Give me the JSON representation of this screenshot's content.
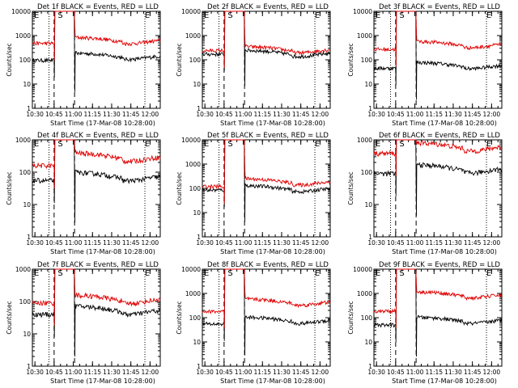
{
  "colors": {
    "events": "#000000",
    "lld": "#e00000",
    "axes": "#000000",
    "background": "#ffffff"
  },
  "chart_data": [
    {
      "type": "line",
      "title": "Det 1f BLACK = Events, RED = LLD",
      "xlabel": "Start Time (17-Mar-08 10:28:00)",
      "ylabel": "Counts/sec",
      "yscale": "log",
      "ylim": [
        1,
        10000
      ],
      "x_tick_labels": [
        "10:30",
        "10:45",
        "11:00",
        "11:15",
        "11:30",
        "11:45",
        "12:00"
      ],
      "y_tick_labels": [
        "1",
        "10",
        "100",
        "1000",
        "10000"
      ],
      "markers": [
        "E",
        "S",
        "E"
      ],
      "series": [
        {
          "name": "Events",
          "color": "black",
          "level": 95,
          "post_level": 145
        },
        {
          "name": "LLD",
          "color": "red",
          "level": 480,
          "post_level": 640
        }
      ]
    },
    {
      "type": "line",
      "title": "Det 2f BLACK = Events, RED = LLD",
      "xlabel": "Start Time (17-Mar-08 10:28:00)",
      "ylabel": "Counts/sec",
      "yscale": "log",
      "ylim": [
        1,
        10000
      ],
      "x_tick_labels": [
        "10:30",
        "10:45",
        "11:00",
        "11:15",
        "11:30",
        "11:45",
        "12:00"
      ],
      "y_tick_labels": [
        "1",
        "10",
        "100",
        "1000",
        "10000"
      ],
      "markers": [
        "E",
        "S",
        "E"
      ],
      "series": [
        {
          "name": "Events",
          "color": "black",
          "level": 170,
          "post_level": 190
        },
        {
          "name": "LLD",
          "color": "red",
          "level": 240,
          "post_level": 270
        }
      ]
    },
    {
      "type": "line",
      "title": "Det 3f BLACK = Events, RED = LLD",
      "xlabel": "Start Time (17-Mar-08 10:28:00)",
      "ylabel": "Counts/sec",
      "yscale": "log",
      "ylim": [
        1,
        10000
      ],
      "x_tick_labels": [
        "10:30",
        "10:45",
        "11:00",
        "11:15",
        "11:30",
        "11:45",
        "12:00"
      ],
      "y_tick_labels": [
        "1",
        "10",
        "100",
        "1000",
        "10000"
      ],
      "markers": [
        "E",
        "S",
        "E"
      ],
      "series": [
        {
          "name": "Events",
          "color": "black",
          "level": 45,
          "post_level": 60
        },
        {
          "name": "LLD",
          "color": "red",
          "level": 270,
          "post_level": 440
        }
      ]
    },
    {
      "type": "line",
      "title": "Det 4f BLACK = Events, RED = LLD",
      "xlabel": "Start Time (17-Mar-08 10:28:00)",
      "ylabel": "Counts/sec",
      "yscale": "log",
      "ylim": [
        1,
        1000
      ],
      "x_tick_labels": [
        "10:30",
        "10:45",
        "11:00",
        "11:15",
        "11:30",
        "11:45",
        "12:00"
      ],
      "y_tick_labels": [
        "1",
        "10",
        "100",
        "1000"
      ],
      "markers": [
        "E",
        "S",
        "E"
      ],
      "series": [
        {
          "name": "Events",
          "color": "black",
          "level": 55,
          "post_level": 75
        },
        {
          "name": "LLD",
          "color": "red",
          "level": 160,
          "post_level": 300
        }
      ]
    },
    {
      "type": "line",
      "title": "Det 5f BLACK = Events, RED = LLD",
      "xlabel": "Start Time (17-Mar-08 10:28:00)",
      "ylabel": "Counts/sec",
      "yscale": "log",
      "ylim": [
        1,
        10000
      ],
      "x_tick_labels": [
        "10:30",
        "10:45",
        "11:00",
        "11:15",
        "11:30",
        "11:45",
        "12:00"
      ],
      "y_tick_labels": [
        "1",
        "10",
        "100",
        "1000",
        "10000"
      ],
      "markers": [
        "E",
        "S",
        "E"
      ],
      "series": [
        {
          "name": "Events",
          "color": "black",
          "level": 85,
          "post_level": 100
        },
        {
          "name": "LLD",
          "color": "red",
          "level": 120,
          "post_level": 190
        }
      ]
    },
    {
      "type": "line",
      "title": "Det 6f BLACK = Events, RED = LLD",
      "xlabel": "Start Time (17-Mar-08 10:28:00)",
      "ylabel": "Counts/sec",
      "yscale": "log",
      "ylim": [
        1,
        1000
      ],
      "x_tick_labels": [
        "10:30",
        "10:45",
        "11:00",
        "11:15",
        "11:30",
        "11:45",
        "12:00"
      ],
      "y_tick_labels": [
        "1",
        "10",
        "100",
        "1000"
      ],
      "markers": [
        "E",
        "S",
        "E"
      ],
      "series": [
        {
          "name": "Events",
          "color": "black",
          "level": 90,
          "post_level": 130
        },
        {
          "name": "LLD",
          "color": "red",
          "level": 380,
          "post_level": 620
        }
      ]
    },
    {
      "type": "line",
      "title": "Det 7f BLACK = Events, RED = LLD",
      "xlabel": "Start Time (17-Mar-08 10:28:00)",
      "ylabel": "Counts/sec",
      "yscale": "log",
      "ylim": [
        1,
        1000
      ],
      "x_tick_labels": [
        "10:30",
        "10:45",
        "11:00",
        "11:15",
        "11:30",
        "11:45",
        "12:00"
      ],
      "y_tick_labels": [
        "1",
        "10",
        "100",
        "1000"
      ],
      "markers": [
        "E",
        "S",
        "E"
      ],
      "series": [
        {
          "name": "Events",
          "color": "black",
          "level": 40,
          "post_level": 55
        },
        {
          "name": "LLD",
          "color": "red",
          "level": 90,
          "post_level": 120
        }
      ]
    },
    {
      "type": "line",
      "title": "Det 8f BLACK = Events, RED = LLD",
      "xlabel": "Start Time (17-Mar-08 10:28:00)",
      "ylabel": "Counts/sec",
      "yscale": "log",
      "ylim": [
        1,
        10000
      ],
      "x_tick_labels": [
        "10:30",
        "10:45",
        "11:00",
        "11:15",
        "11:30",
        "11:45",
        "12:00"
      ],
      "y_tick_labels": [
        "1",
        "10",
        "100",
        "1000",
        "10000"
      ],
      "markers": [
        "E",
        "S",
        "E"
      ],
      "series": [
        {
          "name": "Events",
          "color": "black",
          "level": 55,
          "post_level": 80
        },
        {
          "name": "LLD",
          "color": "red",
          "level": 180,
          "post_level": 450
        }
      ]
    },
    {
      "type": "line",
      "title": "Det 9f BLACK = Events, RED = LLD",
      "xlabel": "Start Time (17-Mar-08 10:28:00)",
      "ylabel": "Counts/sec",
      "yscale": "log",
      "ylim": [
        1,
        10000
      ],
      "x_tick_labels": [
        "10:30",
        "10:45",
        "11:00",
        "11:15",
        "11:30",
        "11:45",
        "12:00"
      ],
      "y_tick_labels": [
        "1",
        "10",
        "100",
        "1000",
        "10000"
      ],
      "markers": [
        "E",
        "S",
        "E"
      ],
      "series": [
        {
          "name": "Events",
          "color": "black",
          "level": 50,
          "post_level": 80
        },
        {
          "name": "LLD",
          "color": "red",
          "level": 190,
          "post_level": 900
        }
      ]
    }
  ]
}
